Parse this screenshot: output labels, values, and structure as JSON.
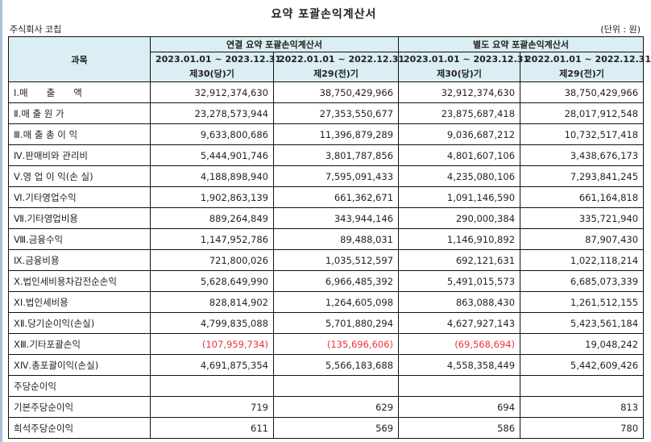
{
  "title": "요약 포괄손익계산서",
  "company": "주식회사 코칩",
  "unit": "(단위 : 원)",
  "header": {
    "item": "과목",
    "groups": [
      "연결 요약 포괄손익계산서",
      "별도 요약 포괄손익계산서"
    ],
    "periods": [
      {
        "range": "2023.01.01 ~ 2023.12.31",
        "term": "제30(당)기"
      },
      {
        "range": "2022.01.01 ~ 2022.12.31",
        "term": "제29(전)기"
      },
      {
        "range": "2023.01.01 ~ 2023.12.31",
        "term": "제30(당)기"
      },
      {
        "range": "2022.01.01 ~ 2022.12.31",
        "term": "제29(전)기"
      }
    ]
  },
  "negative_color": "#f0303a",
  "rows": [
    {
      "label": "Ⅰ.매　　출　　액",
      "values": [
        "32,912,374,630",
        "38,750,429,966",
        "32,912,374,630",
        "38,750,429,966"
      ]
    },
    {
      "label": "Ⅱ.매 출 원 가",
      "values": [
        "23,278,573,944",
        "27,353,550,677",
        "23,875,687,418",
        "28,017,912,548"
      ]
    },
    {
      "label": "Ⅲ.매 출 총 이 익",
      "values": [
        "9,633,800,686",
        "11,396,879,289",
        "9,036,687,212",
        "10,732,517,418"
      ]
    },
    {
      "label": "Ⅳ.판매비와 관리비",
      "values": [
        "5,444,901,746",
        "3,801,787,856",
        "4,801,607,106",
        "3,438,676,173"
      ]
    },
    {
      "label": "Ⅴ.영 업 이 익(손 실)",
      "values": [
        "4,188,898,940",
        "7,595,091,433",
        "4,235,080,106",
        "7,293,841,245"
      ]
    },
    {
      "label": "Ⅵ.기타영업수익",
      "values": [
        "1,902,863,139",
        "661,362,671",
        "1,091,146,590",
        "661,164,818"
      ]
    },
    {
      "label": "Ⅶ.기타영업비용",
      "values": [
        "889,264,849",
        "343,944,146",
        "290,000,384",
        "335,721,940"
      ]
    },
    {
      "label": "Ⅷ.금융수익",
      "values": [
        "1,147,952,786",
        "89,488,031",
        "1,146,910,892",
        "87,907,430"
      ]
    },
    {
      "label": "Ⅸ.금융비용",
      "values": [
        "721,800,026",
        "1,035,512,597",
        "692,121,631",
        "1,022,118,214"
      ]
    },
    {
      "label": "Ⅹ.법인세비용차감전순손익",
      "values": [
        "5,628,649,990",
        "6,966,485,392",
        "5,491,015,573",
        "6,685,073,339"
      ]
    },
    {
      "label": "ⅩⅠ.법인세비용",
      "values": [
        "828,814,902",
        "1,264,605,098",
        "863,088,430",
        "1,261,512,155"
      ]
    },
    {
      "label": "ⅩⅡ.당기순이익(손실)",
      "values": [
        "4,799,835,088",
        "5,701,880,294",
        "4,627,927,143",
        "5,423,561,184"
      ]
    },
    {
      "label": "ⅩⅢ.기타포괄손익",
      "values": [
        "(107,959,734)",
        "(135,696,606)",
        "(69,568,694)",
        "19,048,242"
      ]
    },
    {
      "label": "ⅩⅣ.총포괄이익(손실)",
      "values": [
        "4,691,875,354",
        "5,566,183,688",
        "4,558,358,449",
        "5,442,609,426"
      ]
    },
    {
      "label": "주당순이익",
      "values": [
        "",
        "",
        "",
        ""
      ]
    },
    {
      "label": "기본주당순이익",
      "values": [
        "719",
        "629",
        "694",
        "813"
      ]
    },
    {
      "label": "희석주당순이익",
      "values": [
        "611",
        "569",
        "586",
        "780"
      ]
    }
  ]
}
